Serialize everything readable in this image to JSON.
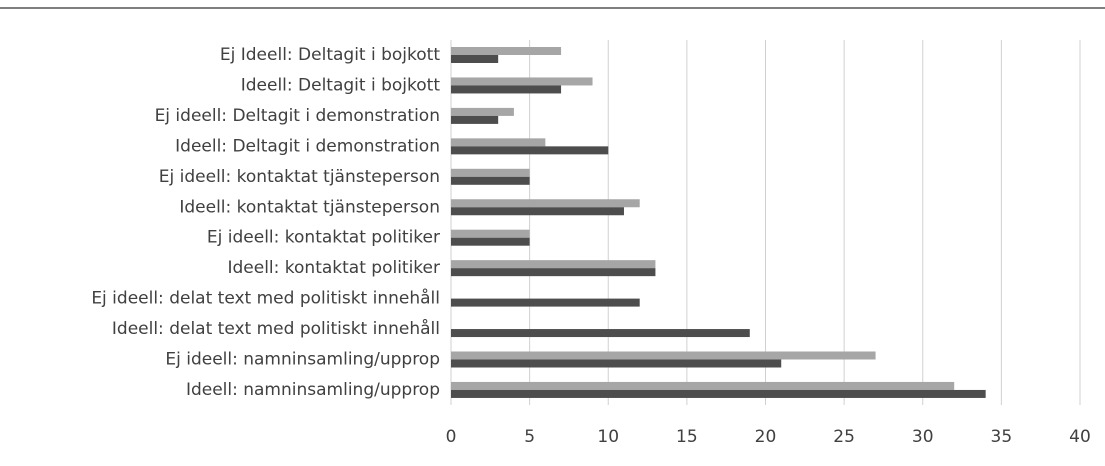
{
  "chart_data": {
    "type": "hbar",
    "categories": [
      "Ej Ideell: Deltagit i bojkott",
      "Ideell: Deltagit i bojkott",
      "Ej ideell: Deltagit i demonstration",
      "Ideell: Deltagit i demonstration",
      "Ej ideell: kontaktat tjänsteperson",
      "Ideell: kontaktat tjänsteperson",
      "Ej ideell: kontaktat politiker",
      "Ideell: kontaktat politiker",
      "Ej ideell: delat text med politiskt innehåll",
      "Ideell: delat text med politiskt innehåll",
      "Ej ideell: namninsamling/upprop",
      "Ideell: namninsamling/upprop"
    ],
    "series": [
      {
        "color": "#a6a6a6",
        "values": [
          7,
          9,
          4,
          6,
          5,
          12,
          5,
          13,
          0,
          0,
          27,
          32
        ]
      },
      {
        "color": "#4d4d4d",
        "values": [
          3,
          7,
          3,
          10,
          5,
          11,
          5,
          13,
          12,
          19,
          21,
          34
        ]
      }
    ],
    "xlim": [
      0,
      40
    ],
    "xticks": [
      0,
      5,
      10,
      15,
      20,
      25,
      30,
      35,
      40
    ],
    "grid": true
  }
}
